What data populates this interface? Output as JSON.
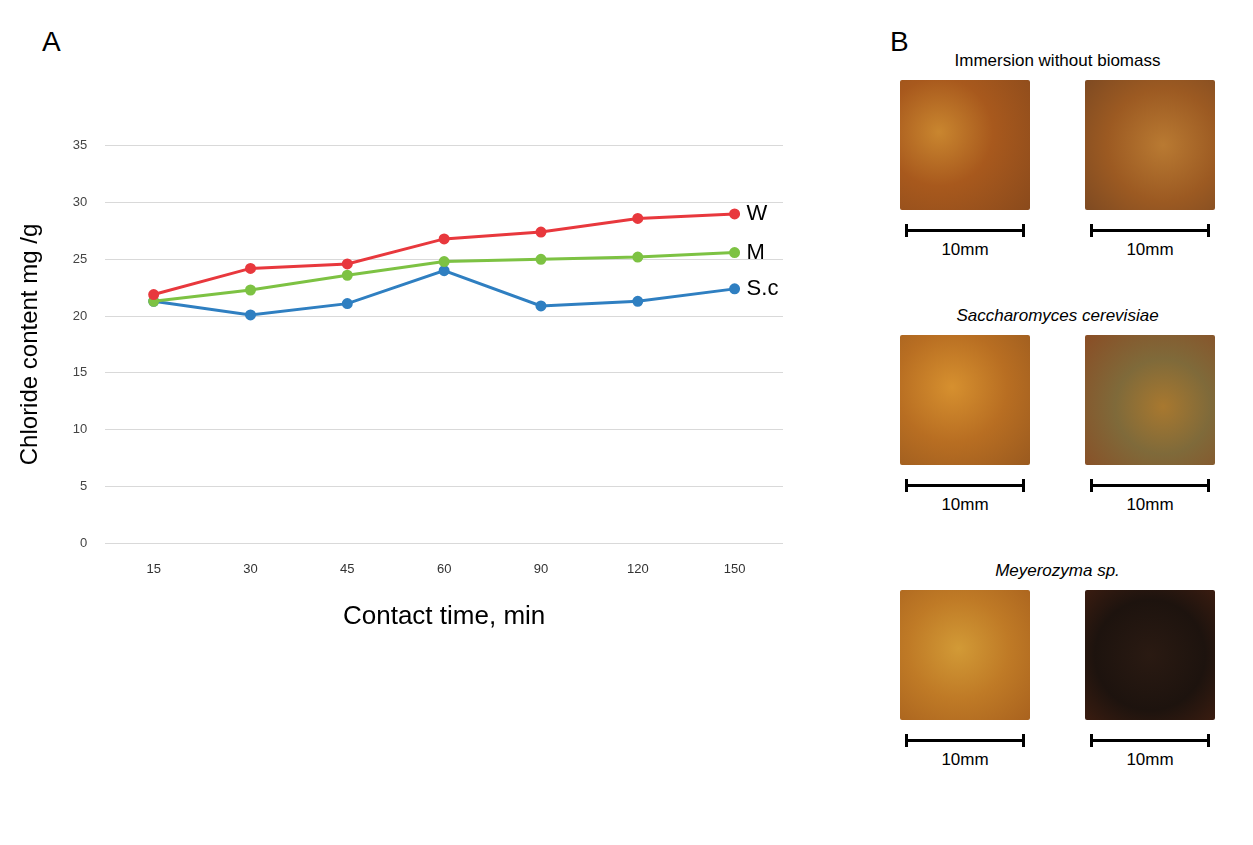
{
  "chart_data": {
    "type": "line",
    "panel": "A",
    "x_label": "Contact time, min",
    "y_label": "Chloride content mg /g",
    "categories": [
      15,
      30,
      45,
      60,
      90,
      120,
      150
    ],
    "series": [
      {
        "name": "W",
        "color": "#e8383d",
        "values": [
          21.9,
          24.2,
          24.6,
          26.8,
          27.4,
          28.6,
          29.0
        ]
      },
      {
        "name": "M",
        "color": "#7dc243",
        "values": [
          21.3,
          22.3,
          23.6,
          24.8,
          25.0,
          25.2,
          25.6
        ]
      },
      {
        "name": "S.c",
        "color": "#2f7fc1",
        "values": [
          21.3,
          20.1,
          21.1,
          24.0,
          20.9,
          21.3,
          22.4
        ]
      }
    ],
    "ylim": [
      0,
      35
    ],
    "yticks": [
      0,
      5,
      10,
      15,
      20,
      25,
      30,
      35
    ],
    "grid": true,
    "marker": "circle"
  },
  "photos": {
    "panel": "B",
    "groups": [
      {
        "title": "Immersion without biomass",
        "scale_bars": [
          "10mm",
          "10mm"
        ]
      },
      {
        "title": "Saccharomyces cerevisiae",
        "scale_bars": [
          "10mm",
          "10mm"
        ]
      },
      {
        "title": "Meyerozyma sp.",
        "scale_bars": [
          "10mm",
          "10mm"
        ]
      }
    ]
  }
}
